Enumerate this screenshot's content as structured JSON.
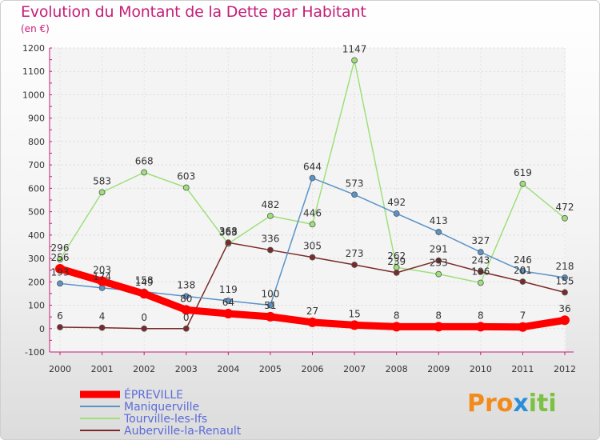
{
  "header": {
    "title": "Evolution du Montant de la Dette par Habitant",
    "unit": "(en €)"
  },
  "logo": {
    "text": "Proxiti"
  },
  "colors": {
    "title": "#c51e78",
    "epreville": "#ff0000",
    "maniquerville": "#5a93c8",
    "tourville": "#9ee07a",
    "auberville": "#7a2a2a"
  },
  "chart_data": {
    "type": "line",
    "title": "Evolution du Montant de la Dette par Habitant",
    "ylabel": "(en €)",
    "xlabel": "",
    "x": [
      "2000",
      "2001",
      "2002",
      "2003",
      "2004",
      "2005",
      "2006",
      "2007",
      "2008",
      "2009",
      "2010",
      "2011",
      "2012"
    ],
    "ylim": [
      -100,
      1200
    ],
    "yticks": [
      -100,
      0,
      100,
      200,
      300,
      400,
      500,
      600,
      700,
      800,
      900,
      1000,
      1100,
      1200
    ],
    "grid": "horizontal",
    "legend_position": "bottom-left",
    "series": [
      {
        "name": "ÉPREVILLE",
        "color": "#ff0000",
        "values": [
          256,
          203,
          149,
          80,
          64,
          51,
          27,
          15,
          8,
          8,
          8,
          7,
          36
        ]
      },
      {
        "name": "Maniquerville",
        "color": "#5a93c8",
        "values": [
          193,
          174,
          158,
          138,
          119,
          100,
          644,
          573,
          492,
          413,
          327,
          246,
          218
        ]
      },
      {
        "name": "Tourville-les-Ifs",
        "color": "#9ee07a",
        "values": [
          296,
          583,
          668,
          603,
          363,
          482,
          446,
          1147,
          262,
          233,
          196,
          619,
          472
        ]
      },
      {
        "name": "Auberville-la-Renault",
        "color": "#7a2a2a",
        "values": [
          6,
          4,
          0,
          0,
          368,
          336,
          305,
          273,
          239,
          291,
          243,
          201,
          155
        ]
      }
    ],
    "point_labels": [
      [
        "256",
        "203",
        "149",
        "80",
        "64",
        "51",
        "27",
        "15",
        "8",
        "8",
        "8",
        "7",
        "36"
      ],
      [
        "193",
        "174",
        "158",
        "138",
        "119",
        "100",
        "644",
        "573",
        "492",
        "413",
        "327",
        "246",
        "218"
      ],
      [
        "296",
        "583",
        "668",
        "603",
        "363",
        "482",
        "446",
        "1147",
        "262",
        "233",
        "196",
        "619",
        "472"
      ],
      [
        "6",
        "4",
        "0",
        "0",
        "368",
        "336",
        "305",
        "273",
        "239",
        "291",
        "243",
        "201",
        "155"
      ]
    ]
  }
}
